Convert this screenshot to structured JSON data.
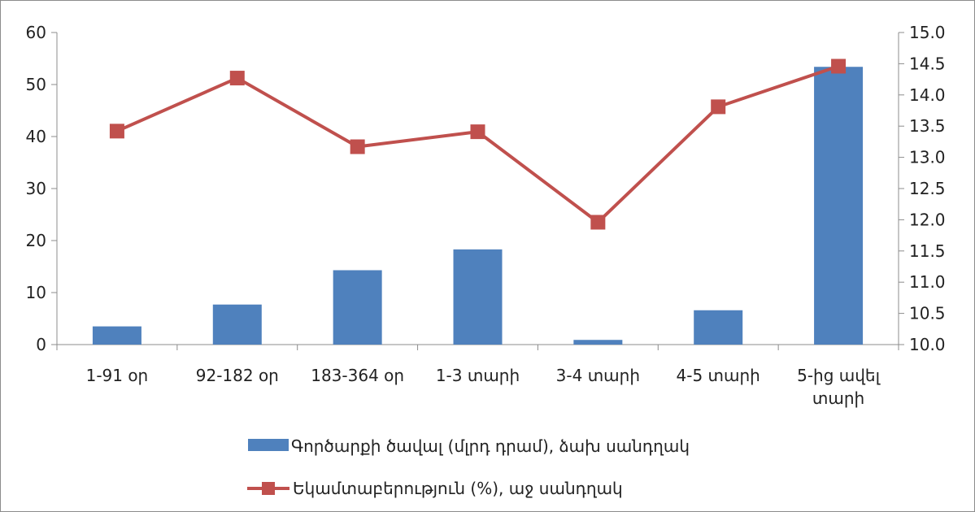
{
  "chart_data": {
    "type": "bar",
    "categories": [
      [
        "1-91 օր"
      ],
      [
        "92-182 օր"
      ],
      [
        "183-364 օր"
      ],
      [
        "1-3 տարի"
      ],
      [
        "3-4 տարի"
      ],
      [
        "4-5 տարի"
      ],
      [
        "5-ից ավել",
        "տարի"
      ]
    ],
    "series": [
      {
        "name": "Գործարքի ծավալ (մլրդ դրամ), ձախ սանդղակ",
        "type": "bar",
        "axis": "left",
        "color": "#4f81bd",
        "values": [
          3.5,
          7.7,
          14.3,
          18.3,
          0.9,
          6.6,
          53.4
        ]
      },
      {
        "name": "Եկամտաբերություն (%), աջ սանդղակ",
        "type": "line",
        "axis": "right",
        "color": "#c0504d",
        "marker": "square",
        "values": [
          13.42,
          14.27,
          13.17,
          13.41,
          11.96,
          13.81,
          14.46
        ]
      }
    ],
    "left_axis": {
      "ylim": [
        0,
        60
      ],
      "ticks": [
        "0",
        "10",
        "20",
        "30",
        "40",
        "50",
        "60"
      ]
    },
    "right_axis": {
      "ylim": [
        10.0,
        15.0
      ],
      "ticks": [
        "10.0",
        "10.5",
        "11.0",
        "11.5",
        "12.0",
        "12.5",
        "13.0",
        "13.5",
        "14.0",
        "14.5",
        "15.0"
      ]
    },
    "grid": false,
    "legend_position": "bottom"
  }
}
